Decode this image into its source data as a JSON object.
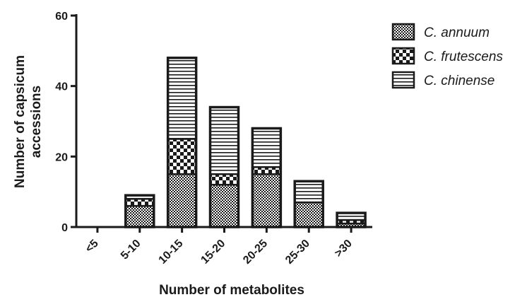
{
  "chart_data": {
    "type": "bar",
    "stacked": true,
    "xlabel": "Number of metabolites",
    "ylabel_lines": [
      "Number of capsicum",
      "accessions"
    ],
    "categories": [
      "<5",
      "5-10",
      "10-15",
      "15-20",
      "20-25",
      "25-30",
      ">30"
    ],
    "series": [
      {
        "name": "C. annuum",
        "pattern": "dense-checker",
        "values": [
          0,
          6,
          15,
          12,
          15,
          7,
          1
        ]
      },
      {
        "name": "C. frutescens",
        "pattern": "checker",
        "values": [
          0,
          2,
          10,
          3,
          2,
          0,
          1
        ]
      },
      {
        "name": "C. chinense",
        "pattern": "horizontal-lines",
        "values": [
          0,
          1,
          23,
          19,
          11,
          6,
          2
        ]
      }
    ],
    "ylim": [
      0,
      60
    ],
    "yticks": [
      0,
      20,
      40,
      60
    ],
    "grid": false,
    "legend_position": "top-right"
  },
  "colors": {
    "ink": "#1a1a1a",
    "background": "#ffffff"
  }
}
